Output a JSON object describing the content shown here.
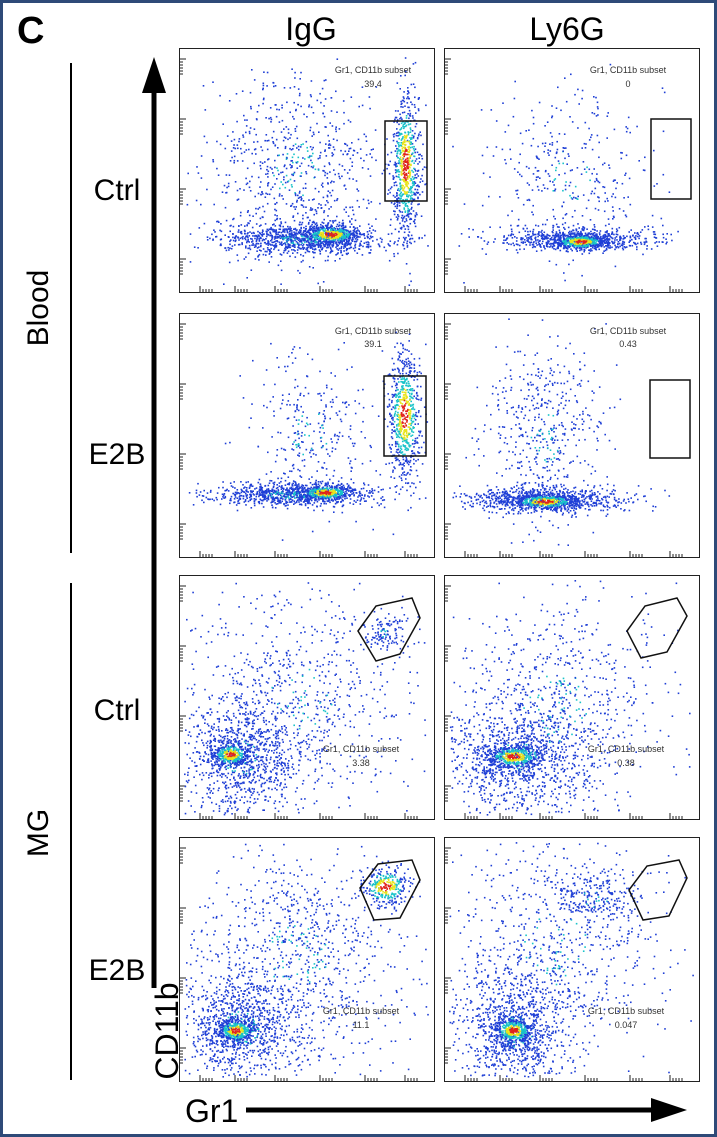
{
  "figure": {
    "panel_letter": "C",
    "columns": [
      "IgG",
      "Ly6G"
    ],
    "tissues": [
      "Blood",
      "MG"
    ],
    "conditions": [
      "Ctrl",
      "E2B",
      "Ctrl",
      "E2B"
    ],
    "x_axis_label": "Gr1",
    "y_axis_label": "CD11b",
    "gate_name": "Gr1, CD11b subset"
  },
  "plots": [
    {
      "id": "blood-ctrl-igg",
      "tissue": "Blood",
      "condition": "Ctrl",
      "antibody": "IgG",
      "gate_shape": "rectangle",
      "gate_value": "39.4"
    },
    {
      "id": "blood-ctrl-ly6g",
      "tissue": "Blood",
      "condition": "Ctrl",
      "antibody": "Ly6G",
      "gate_shape": "rectangle",
      "gate_value": "0"
    },
    {
      "id": "blood-e2b-igg",
      "tissue": "Blood",
      "condition": "E2B",
      "antibody": "IgG",
      "gate_shape": "rectangle",
      "gate_value": "39.1"
    },
    {
      "id": "blood-e2b-ly6g",
      "tissue": "Blood",
      "condition": "E2B",
      "antibody": "Ly6G",
      "gate_shape": "rectangle",
      "gate_value": "0.43"
    },
    {
      "id": "mg-ctrl-igg",
      "tissue": "MG",
      "condition": "Ctrl",
      "antibody": "IgG",
      "gate_shape": "polygon",
      "gate_value": "3.38"
    },
    {
      "id": "mg-ctrl-ly6g",
      "tissue": "MG",
      "condition": "Ctrl",
      "antibody": "Ly6G",
      "gate_shape": "polygon",
      "gate_value": "0.38"
    },
    {
      "id": "mg-e2b-igg",
      "tissue": "MG",
      "condition": "E2B",
      "antibody": "IgG",
      "gate_shape": "polygon",
      "gate_value": "11.1"
    },
    {
      "id": "mg-e2b-ly6g",
      "tissue": "MG",
      "condition": "E2B",
      "antibody": "Ly6G",
      "gate_shape": "polygon",
      "gate_value": "0.047"
    }
  ],
  "colors": {
    "frame": "#2e4a78",
    "density_low": "#1f3fd6",
    "density_mid": "#19c3c9",
    "density_high": "#e8e41c",
    "density_peak": "#e0241c"
  }
}
